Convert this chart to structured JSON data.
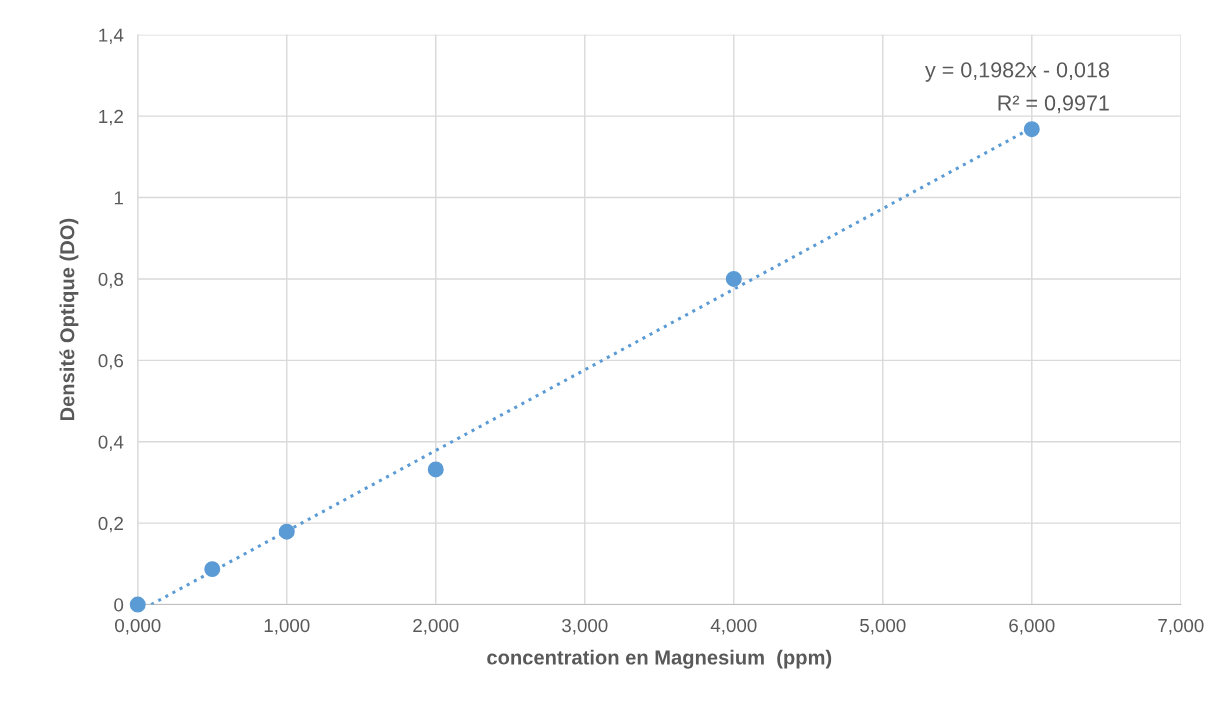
{
  "chart_data": {
    "type": "scatter",
    "xlabel": "concentration en Magnesium  (ppm)",
    "ylabel": "Densité Optique (DO)",
    "series": [
      {
        "color": "#5b9bd5",
        "marker": "circle",
        "x": [
          0,
          0.5,
          1,
          2,
          4,
          6
        ],
        "values": [
          0,
          0.087,
          0.179,
          0.332,
          0.8,
          1.168
        ]
      },
      {
        "type": "line",
        "color": "#5b9bd5",
        "line_style": "dotted",
        "marker": "none",
        "x": [
          0.09,
          6
        ],
        "values": [
          0,
          1.171
        ]
      }
    ],
    "annotations": [
      "y = 0,1982x - 0,018",
      "R² = 0,9971"
    ],
    "xlim": [
      0,
      7
    ],
    "ylim": [
      0,
      1.4
    ],
    "xticks": [
      {
        "value": 0,
        "label": "0,000"
      },
      {
        "value": 1,
        "label": "1,000"
      },
      {
        "value": 2,
        "label": "2,000"
      },
      {
        "value": 3,
        "label": "3,000"
      },
      {
        "value": 4,
        "label": "4,000"
      },
      {
        "value": 5,
        "label": "5,000"
      },
      {
        "value": 6,
        "label": "6,000"
      },
      {
        "value": 7,
        "label": "7,000"
      }
    ],
    "yticks": [
      0,
      {
        "value": 0.2,
        "label": "0,2"
      },
      {
        "value": 0.4,
        "label": "0,4"
      },
      {
        "value": 0.6,
        "label": "0,6"
      },
      {
        "value": 0.8,
        "label": "0,8"
      },
      1,
      {
        "value": 1.2,
        "label": "1,2"
      },
      {
        "value": 1.4,
        "label": "1,4"
      }
    ],
    "grid": true,
    "legend": false
  }
}
